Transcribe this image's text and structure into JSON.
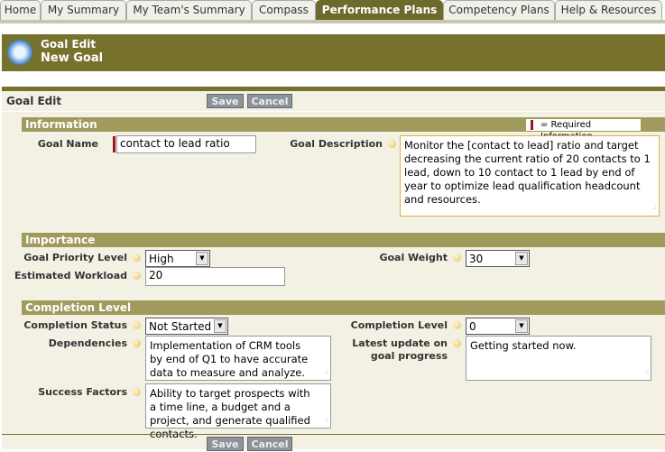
{
  "tabs": [
    "Home",
    "My Summary",
    "My Team's Summary",
    "Compass",
    "Performance Plans",
    "Competency Plans",
    "Help & Resources"
  ],
  "active_tab": "Performance Plans",
  "header": {
    "title": "Goal Edit",
    "subtitle": "New Goal",
    "icon": "stopwatch-icon"
  },
  "toolbar": {
    "title": "Goal Edit",
    "save": "Save",
    "cancel": "Cancel"
  },
  "information": {
    "title": "Information",
    "required_legend": "= Required Information",
    "goal_name_label": "Goal Name",
    "goal_name": "contact to lead ratio",
    "goal_description_label": "Goal Description",
    "goal_description": "Monitor the [contact to lead] ratio and target decreasing the current ratio of 20 contacts to 1 lead, down to 10 contact to 1 lead by end of year to optimize lead qualification headcount and resources."
  },
  "importance": {
    "title": "Importance",
    "priority_label": "Goal Priority Level",
    "priority": "High",
    "workload_label": "Estimated Workload",
    "workload": "20",
    "weight_label": "Goal Weight",
    "weight": "30"
  },
  "completion": {
    "title": "Completion Level",
    "status_label": "Completion Status",
    "status": "Not Started",
    "level_label": "Completion Level",
    "level": "0",
    "dependencies_label": "Dependencies",
    "dependencies": "Implementation of CRM tools by end of Q1 to have accurate data to measure and analyze.",
    "latest_label": "Latest update on goal progress",
    "latest": "Getting started now.",
    "success_label": "Success Factors",
    "success": "Ability to target prospects with a time line, a budget and a project, and generate qualified contacts."
  },
  "colors": {
    "olive_dark": "#77712e",
    "olive_section": "#a09a5c",
    "page_bg": "#f3f1e4",
    "required": "#a0141e"
  }
}
